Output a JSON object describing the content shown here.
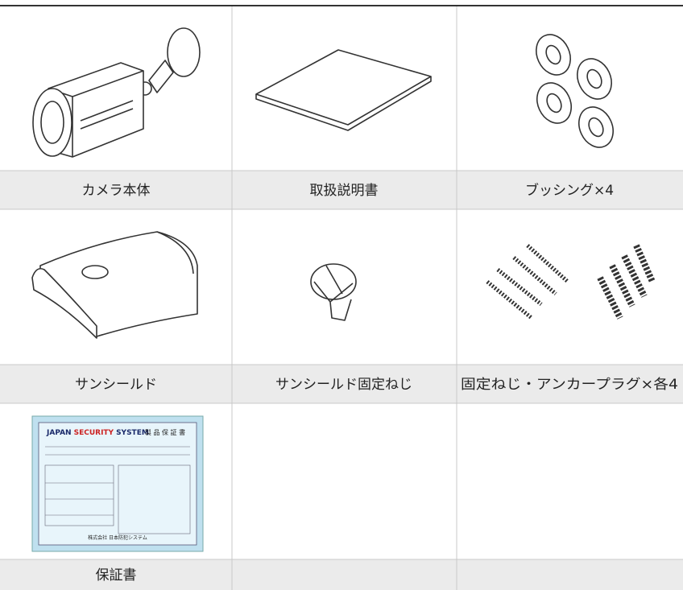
{
  "table": {
    "rows": [
      {
        "items": [
          {
            "label": "カメラ本体"
          },
          {
            "label": "取扱説明書"
          },
          {
            "label": "ブッシング×4"
          }
        ]
      },
      {
        "items": [
          {
            "label": "サンシールド"
          },
          {
            "label": "サンシールド固定ねじ"
          },
          {
            "label": "固定ねじ・アンカープラグ×各4"
          }
        ]
      },
      {
        "items": [
          {
            "label": "保証書"
          }
        ]
      }
    ]
  },
  "warranty_card": {
    "brand_a": "JAPAN",
    "brand_b": "SECURITY",
    "brand_c": "SYSTEM",
    "title": "製 品 保 証 書",
    "company": "株式会社 日本防犯システム"
  }
}
